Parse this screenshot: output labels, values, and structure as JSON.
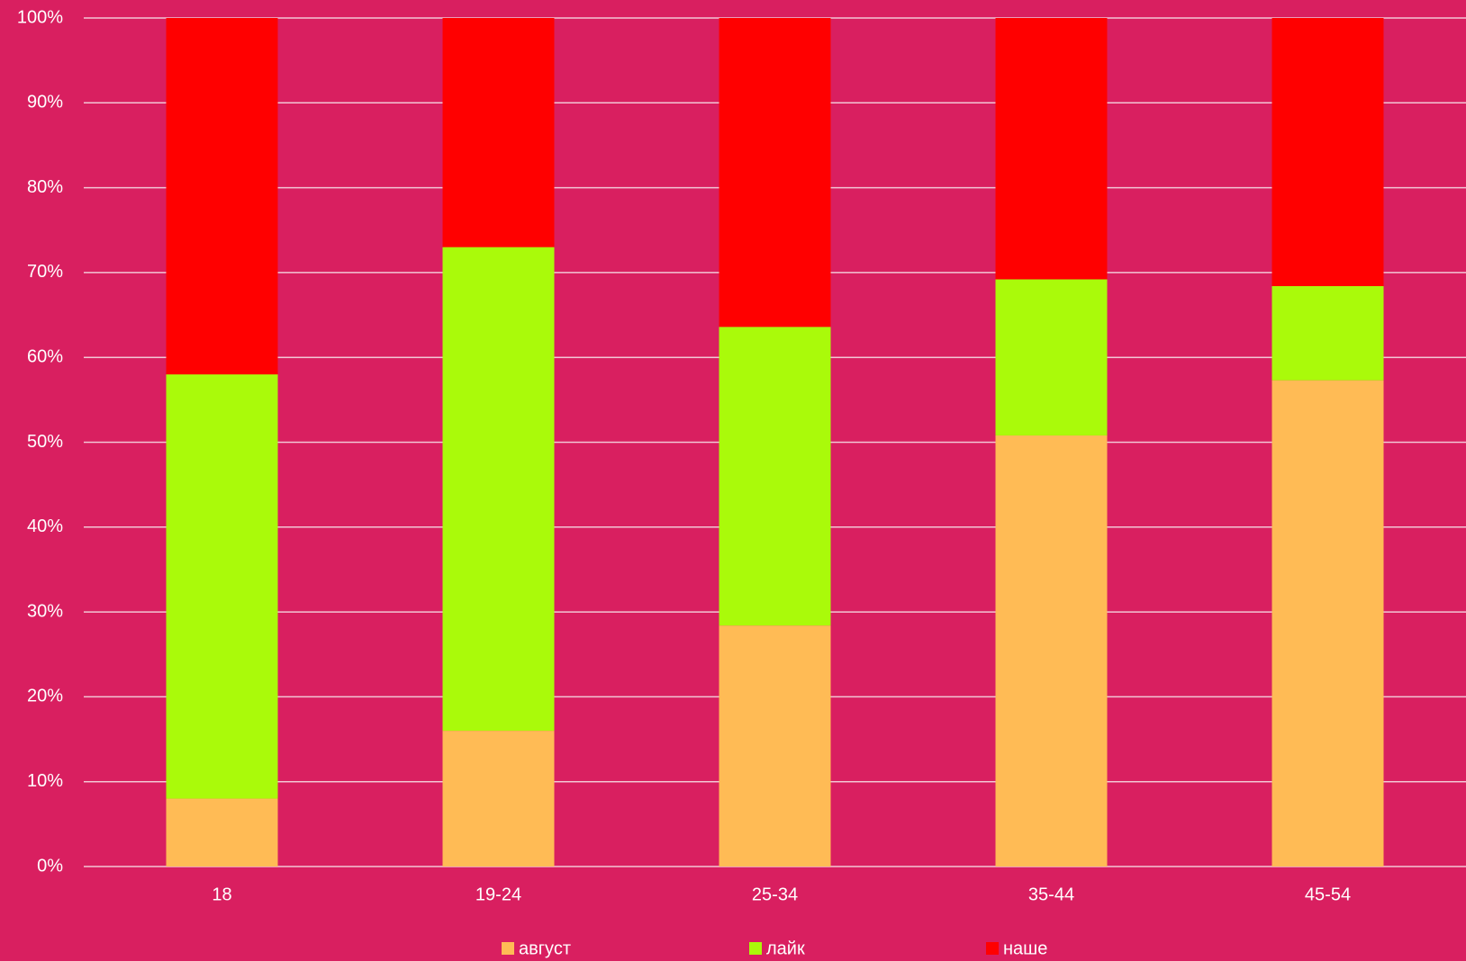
{
  "chart_data": {
    "type": "stacked_bar",
    "categories": [
      "18",
      "19-24",
      "25-34",
      "35-44",
      "45-54"
    ],
    "series": [
      {
        "name": "август",
        "color": "#ffbb55",
        "values": [
          8,
          16,
          28.4,
          50.8,
          57.3
        ]
      },
      {
        "name": "лайк",
        "color": "#aafa0a",
        "values": [
          50,
          57,
          35.2,
          18.4,
          11.1
        ]
      },
      {
        "name": "наше",
        "color": "#ff0000",
        "values": [
          42,
          27,
          36.4,
          30.8,
          31.6
        ]
      }
    ],
    "ylim": [
      0,
      100
    ],
    "yticks": [
      {
        "value": 0,
        "label": "0%"
      },
      {
        "value": 10,
        "label": "10%"
      },
      {
        "value": 20,
        "label": "20%"
      },
      {
        "value": 30,
        "label": "30%"
      },
      {
        "value": 40,
        "label": "40%"
      },
      {
        "value": 50,
        "label": "50%"
      },
      {
        "value": 60,
        "label": "60%"
      },
      {
        "value": 70,
        "label": "70%"
      },
      {
        "value": 80,
        "label": "80%"
      },
      {
        "value": 90,
        "label": "90%"
      },
      {
        "value": 100,
        "label": "100%"
      }
    ],
    "grid": true,
    "legend": "bottom"
  }
}
